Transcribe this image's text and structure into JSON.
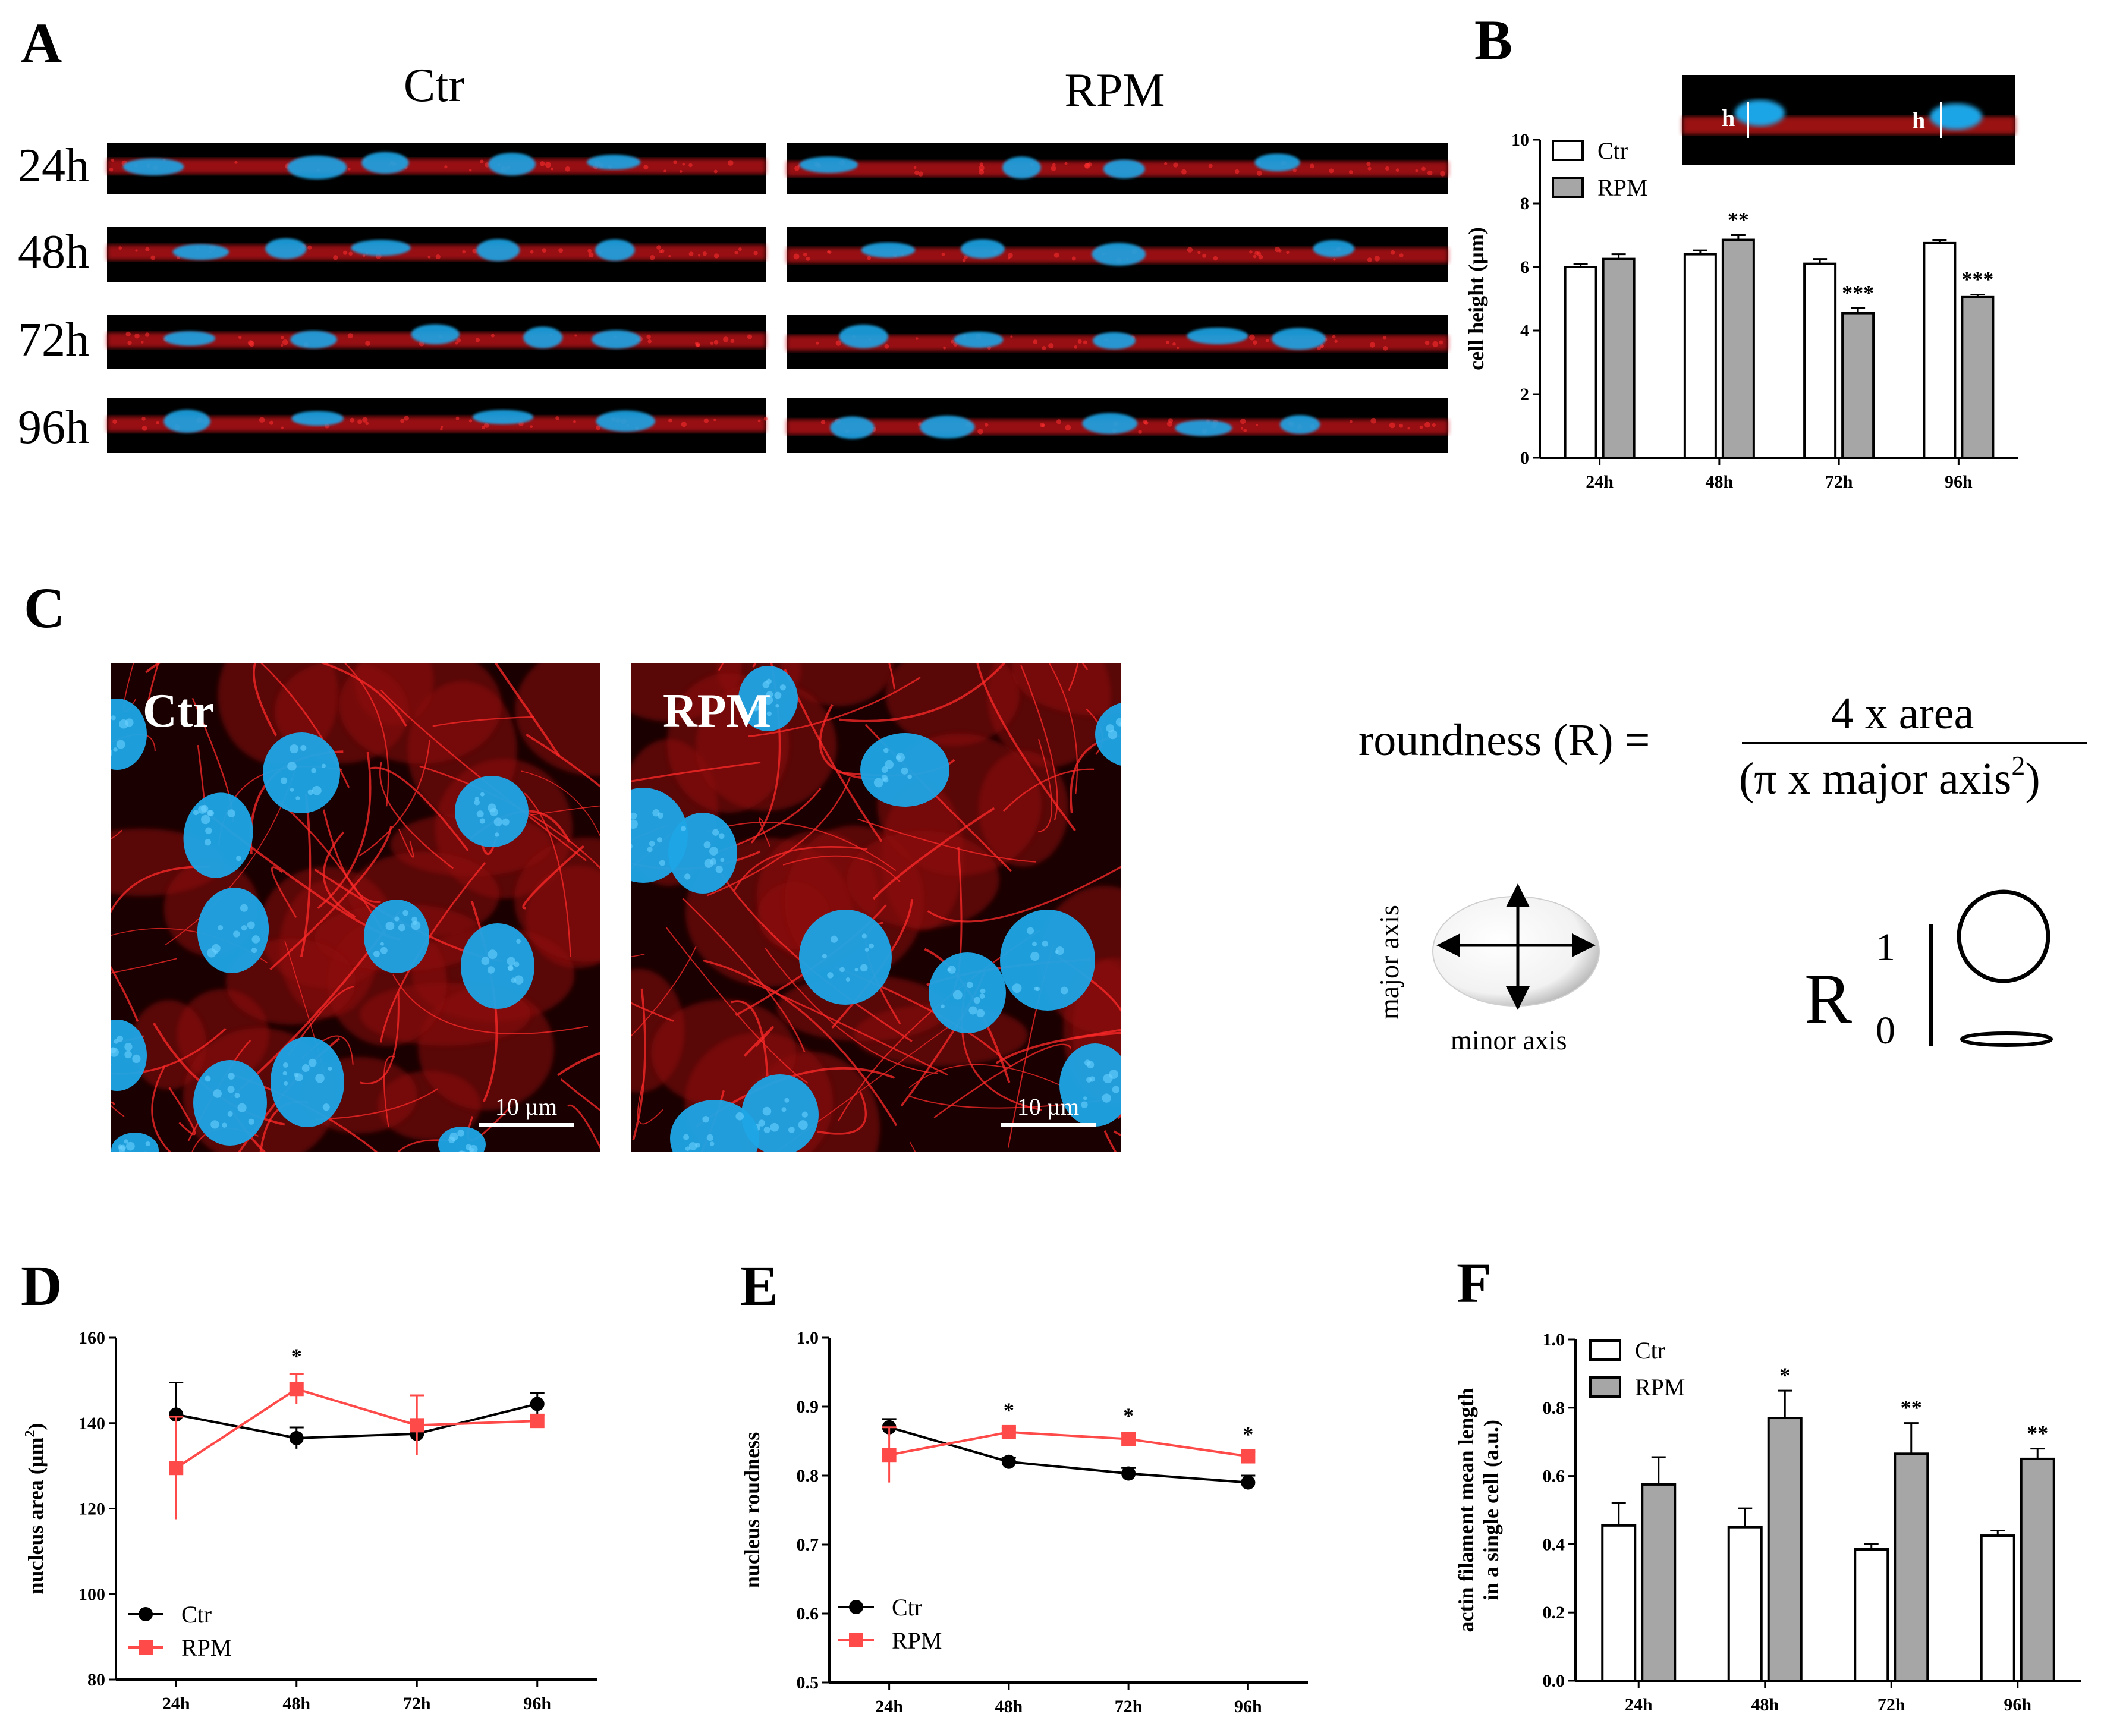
{
  "panels": {
    "a": {
      "letter": "A",
      "col_labels": [
        "Ctr",
        "RPM"
      ],
      "row_labels": [
        "24h",
        "48h",
        "72h",
        "96h"
      ]
    },
    "b": {
      "letter": "B",
      "inset_marker": "h"
    },
    "c": {
      "letter": "C",
      "img_labels": [
        "Ctr",
        "RPM"
      ],
      "scale_bar": "10 µm",
      "formula": {
        "lhs": "roundness  (R) =",
        "numerator": "4 x area",
        "denominator": "(π x major axis",
        "denominator_sup": "2",
        "denominator_end": ")"
      },
      "schema": {
        "major_axis": "major axis",
        "minor_axis": "minor axis",
        "r_symbol": "R",
        "r_max": "1",
        "r_min": "0"
      }
    },
    "d": {
      "letter": "D"
    },
    "e": {
      "letter": "E"
    },
    "f": {
      "letter": "F"
    }
  },
  "colors": {
    "ctr": "#000000",
    "rpm": "#ff4a4a",
    "bar_ctr": "#ffffff",
    "bar_rpm": "#a6a6a6",
    "nucleus": "#1ea5e6",
    "actin": "#d8181a"
  },
  "chart_data": [
    {
      "id": "B",
      "type": "bar",
      "categories": [
        "24h",
        "48h",
        "72h",
        "96h"
      ],
      "series": [
        {
          "name": "Ctr",
          "values": [
            6.0,
            6.4,
            6.1,
            6.75
          ],
          "errors": [
            0.1,
            0.12,
            0.15,
            0.1
          ]
        },
        {
          "name": "RPM",
          "values": [
            6.25,
            6.85,
            4.55,
            5.05
          ],
          "errors": [
            0.15,
            0.15,
            0.15,
            0.08
          ]
        }
      ],
      "annotations": [
        "",
        "**",
        "***",
        "***"
      ],
      "ylabel": "cell height (µm)",
      "ylim": [
        0,
        10
      ],
      "yticks": [
        0,
        2,
        4,
        6,
        8,
        10
      ]
    },
    {
      "id": "D",
      "type": "line",
      "categories": [
        "24h",
        "48h",
        "72h",
        "96h"
      ],
      "series": [
        {
          "name": "Ctr",
          "values": [
            142,
            136.5,
            137.5,
            144.5
          ],
          "errors": [
            7.5,
            2.5,
            1.5,
            2.5
          ]
        },
        {
          "name": "RPM",
          "values": [
            129.5,
            148,
            139.5,
            140.5
          ],
          "errors": [
            12,
            3.5,
            7,
            1.5
          ]
        }
      ],
      "annotations": [
        "",
        "*",
        "",
        ""
      ],
      "ylabel": "nucleus area (µm",
      "ylabel_sup": "2",
      "ylabel_end": ")",
      "ylim": [
        80,
        160
      ],
      "yticks": [
        80,
        100,
        120,
        140,
        160
      ]
    },
    {
      "id": "E",
      "type": "line",
      "categories": [
        "24h",
        "48h",
        "72h",
        "96h"
      ],
      "series": [
        {
          "name": "Ctr",
          "values": [
            0.87,
            0.82,
            0.803,
            0.79
          ],
          "errors": [
            0.012,
            0.006,
            0.008,
            0.01
          ]
        },
        {
          "name": "RPM",
          "values": [
            0.83,
            0.863,
            0.853,
            0.828
          ],
          "errors": [
            0.04,
            0.006,
            0.008,
            0.006
          ]
        }
      ],
      "annotations": [
        "",
        "*",
        "*",
        "*"
      ],
      "ylabel": "nucleus roudness",
      "ylim": [
        0.5,
        1.0
      ],
      "yticks": [
        0.5,
        0.6,
        0.7,
        0.8,
        0.9,
        1.0
      ]
    },
    {
      "id": "F",
      "type": "bar",
      "categories": [
        "24h",
        "48h",
        "72h",
        "96h"
      ],
      "series": [
        {
          "name": "Ctr",
          "values": [
            0.455,
            0.45,
            0.385,
            0.425
          ],
          "errors": [
            0.065,
            0.055,
            0.015,
            0.015
          ]
        },
        {
          "name": "RPM",
          "values": [
            0.575,
            0.77,
            0.665,
            0.65
          ],
          "errors": [
            0.08,
            0.08,
            0.09,
            0.03
          ]
        }
      ],
      "annotations": [
        "",
        "*",
        "**",
        "**"
      ],
      "ylabel": "actin filament mean length",
      "ylabel2": "in a single cell (a.u.)",
      "ylim": [
        0,
        1.0
      ],
      "yticks": [
        0.0,
        0.2,
        0.4,
        0.6,
        0.8,
        1.0
      ]
    }
  ]
}
